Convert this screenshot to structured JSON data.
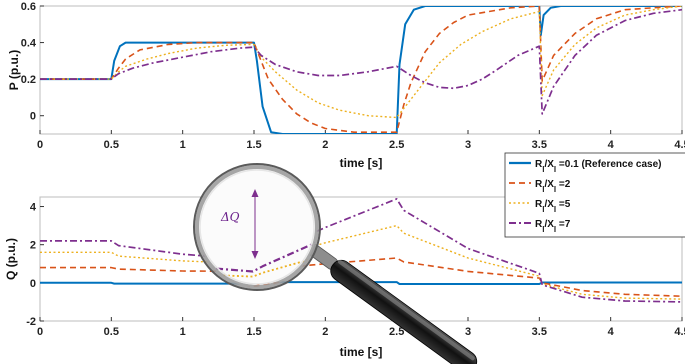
{
  "colors": {
    "ref": "#0072BD",
    "r2": "#D95319",
    "r5": "#EDB120",
    "r7": "#7E2F8E",
    "annotation": "#7E2F8E"
  },
  "annotation": {
    "label": "ΔQ",
    "icon": "magnifier-icon"
  },
  "chart_data": [
    {
      "type": "line",
      "ylabel": "P (p.u.)",
      "xlabel": "time [s]",
      "xlim": [
        0,
        4.5
      ],
      "ylim": [
        -0.1,
        0.6
      ],
      "xticks": [
        0,
        0.5,
        1,
        1.5,
        2,
        2.5,
        3,
        3.5,
        4,
        4.5
      ],
      "xtick_labels": [
        "0",
        "0.5",
        "1",
        "1.5",
        "2",
        "2.5",
        "3",
        "3.5",
        "4",
        "4.5"
      ],
      "yticks": [
        0,
        0.2,
        0.4,
        0.6
      ],
      "ytick_labels": [
        "0",
        "0.2",
        "0.4",
        "0.6"
      ],
      "grid": false,
      "series": [
        {
          "name": "R/X =0.1 (Reference case)",
          "x": [
            0,
            0.5,
            0.52,
            0.56,
            0.6,
            1.5,
            1.52,
            1.56,
            1.62,
            1.7,
            2.5,
            2.52,
            2.56,
            2.62,
            2.7,
            3.5,
            3.51,
            3.53,
            3.58,
            3.65,
            4.5
          ],
          "y": [
            0.2,
            0.2,
            0.3,
            0.38,
            0.4,
            0.4,
            0.3,
            0.05,
            -0.09,
            -0.1,
            -0.1,
            0.28,
            0.5,
            0.58,
            0.6,
            0.6,
            0.44,
            0.55,
            0.59,
            0.6,
            0.6
          ]
        },
        {
          "name": "R/X =2",
          "x": [
            0,
            0.5,
            0.55,
            0.6,
            0.7,
            0.9,
            1.1,
            1.5,
            1.55,
            1.6,
            1.7,
            1.8,
            1.9,
            2.0,
            2.2,
            2.5,
            2.55,
            2.6,
            2.7,
            2.8,
            2.9,
            3.0,
            3.3,
            3.5,
            3.52,
            3.6,
            3.75,
            3.9,
            4.1,
            4.3,
            4.5
          ],
          "y": [
            0.2,
            0.2,
            0.26,
            0.31,
            0.36,
            0.39,
            0.4,
            0.4,
            0.3,
            0.2,
            0.09,
            0.01,
            -0.04,
            -0.07,
            -0.09,
            -0.09,
            0.06,
            0.18,
            0.35,
            0.45,
            0.51,
            0.55,
            0.59,
            0.6,
            0.19,
            0.33,
            0.45,
            0.53,
            0.58,
            0.59,
            0.6
          ]
        },
        {
          "name": "R/X =5",
          "x": [
            0,
            0.5,
            0.55,
            0.6,
            0.75,
            0.9,
            1.1,
            1.3,
            1.5,
            1.55,
            1.65,
            1.8,
            1.95,
            2.1,
            2.3,
            2.5,
            2.55,
            2.65,
            2.8,
            2.95,
            3.1,
            3.3,
            3.5,
            3.52,
            3.6,
            3.75,
            3.9,
            4.1,
            4.3,
            4.5
          ],
          "y": [
            0.2,
            0.2,
            0.24,
            0.27,
            0.31,
            0.34,
            0.37,
            0.385,
            0.39,
            0.32,
            0.24,
            0.14,
            0.07,
            0.03,
            0.0,
            -0.01,
            0.04,
            0.14,
            0.29,
            0.39,
            0.46,
            0.53,
            0.57,
            0.11,
            0.25,
            0.39,
            0.48,
            0.55,
            0.58,
            0.6
          ]
        },
        {
          "name": "R/X =7",
          "x": [
            0,
            0.5,
            0.55,
            0.65,
            0.8,
            1.0,
            1.2,
            1.4,
            1.5,
            1.55,
            1.65,
            1.8,
            1.95,
            2.1,
            2.3,
            2.5,
            2.6,
            2.7,
            2.8,
            2.9,
            3.0,
            3.1,
            3.2,
            3.35,
            3.5,
            3.52,
            3.6,
            3.75,
            3.9,
            4.1,
            4.3,
            4.5
          ],
          "y": [
            0.2,
            0.2,
            0.23,
            0.26,
            0.29,
            0.32,
            0.35,
            0.37,
            0.375,
            0.33,
            0.28,
            0.24,
            0.22,
            0.22,
            0.24,
            0.27,
            0.22,
            0.18,
            0.155,
            0.15,
            0.165,
            0.2,
            0.25,
            0.33,
            0.38,
            0.01,
            0.16,
            0.33,
            0.44,
            0.52,
            0.56,
            0.58
          ]
        }
      ]
    },
    {
      "type": "line",
      "ylabel": "Q (p.u.)",
      "xlabel": "time [s]",
      "xlim": [
        0,
        4.5
      ],
      "ylim": [
        -2,
        4.5
      ],
      "xticks": [
        0,
        0.5,
        1,
        1.5,
        2,
        2.5,
        3,
        3.5,
        4,
        4.5
      ],
      "xtick_labels": [
        "0",
        "0.5",
        "1",
        "1.5",
        "2",
        "2.5",
        "3",
        "3.5",
        "4",
        "4.5"
      ],
      "yticks": [
        -2,
        0,
        2,
        4
      ],
      "ytick_labels": [
        "-2",
        "0",
        "2",
        "4"
      ],
      "grid": false,
      "legend": {
        "placement": "top-right",
        "entries": [
          {
            "base": "R",
            "sub1": "l",
            "mid": "/X",
            "sub2": "l",
            "suffix": " =0.1 (Reference case)"
          },
          {
            "base": "R",
            "sub1": "l",
            "mid": "/X",
            "sub2": "l",
            "suffix": " =2"
          },
          {
            "base": "R",
            "sub1": "l",
            "mid": "/X",
            "sub2": "l",
            "suffix": " =5"
          },
          {
            "base": "R",
            "sub1": "l",
            "mid": "/X",
            "sub2": "l",
            "suffix": " =7"
          }
        ]
      },
      "series": [
        {
          "name": "R/X =0.1 (Reference case)",
          "x": [
            0,
            0.5,
            0.52,
            1.5,
            1.52,
            2.5,
            2.52,
            3.5,
            3.52,
            4.5
          ],
          "y": [
            0,
            0,
            -0.04,
            -0.04,
            0.04,
            0.04,
            -0.06,
            -0.06,
            0.02,
            0.02
          ]
        },
        {
          "name": "R/X =2",
          "x": [
            0,
            0.5,
            0.55,
            1.0,
            1.5,
            1.55,
            2.0,
            2.5,
            2.55,
            3.0,
            3.5,
            3.52,
            3.8,
            4.1,
            4.5
          ],
          "y": [
            0.8,
            0.8,
            0.72,
            0.62,
            0.6,
            0.7,
            1.0,
            1.3,
            1.1,
            0.6,
            0.25,
            0.0,
            -0.4,
            -0.6,
            -0.7
          ]
        },
        {
          "name": "R/X =5",
          "x": [
            0,
            0.5,
            0.55,
            1.0,
            1.5,
            1.55,
            2.0,
            2.5,
            2.55,
            3.0,
            3.5,
            3.52,
            3.8,
            4.1,
            4.5
          ],
          "y": [
            1.6,
            1.6,
            1.4,
            1.15,
            1.0,
            1.15,
            2.1,
            3.0,
            2.6,
            1.3,
            0.35,
            -0.05,
            -0.6,
            -0.8,
            -0.85
          ]
        },
        {
          "name": "R/X =7",
          "x": [
            0,
            0.5,
            0.55,
            1.0,
            1.5,
            1.55,
            2.0,
            2.5,
            2.55,
            3.0,
            3.5,
            3.52,
            3.8,
            4.1,
            4.5
          ],
          "y": [
            2.2,
            2.2,
            1.95,
            1.5,
            1.2,
            1.4,
            2.9,
            4.4,
            3.8,
            1.8,
            0.5,
            -0.1,
            -0.75,
            -0.95,
            -1.0
          ]
        }
      ]
    }
  ]
}
